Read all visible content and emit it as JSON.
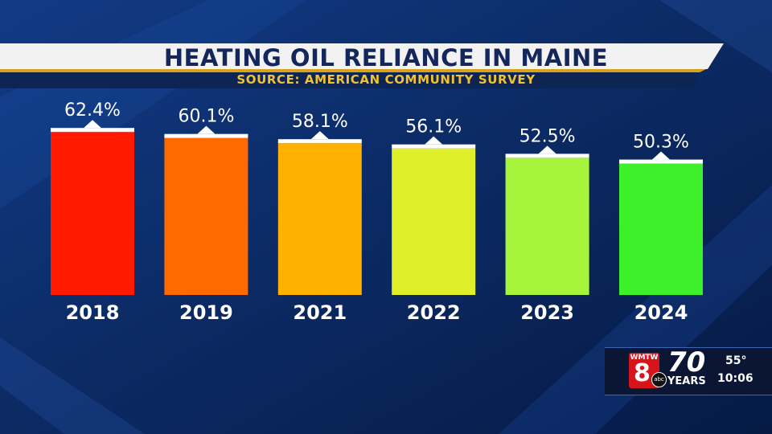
{
  "chart_data": {
    "type": "bar",
    "title": "HEATING OIL RELIANCE IN MAINE",
    "subtitle": "SOURCE: AMERICAN COMMUNITY SURVEY",
    "categories": [
      "2018",
      "2019",
      "2021",
      "2022",
      "2023",
      "2024"
    ],
    "values": [
      62.4,
      60.1,
      58.1,
      56.1,
      52.5,
      50.3
    ],
    "value_labels": [
      "62.4%",
      "60.1%",
      "58.1%",
      "56.1%",
      "52.5%",
      "50.3%"
    ],
    "colors": [
      "#ff1a00",
      "#ff6a00",
      "#ffb000",
      "#dff02a",
      "#a6f53c",
      "#3ef02a"
    ],
    "unit": "%",
    "grid": false,
    "legend": "none"
  },
  "station_bug": {
    "call_letters": "WMTW",
    "channel": "8",
    "network": "abc",
    "anniversary_number": "70",
    "anniversary_word": "YEARS",
    "temperature": "55°",
    "time": "10:06"
  }
}
